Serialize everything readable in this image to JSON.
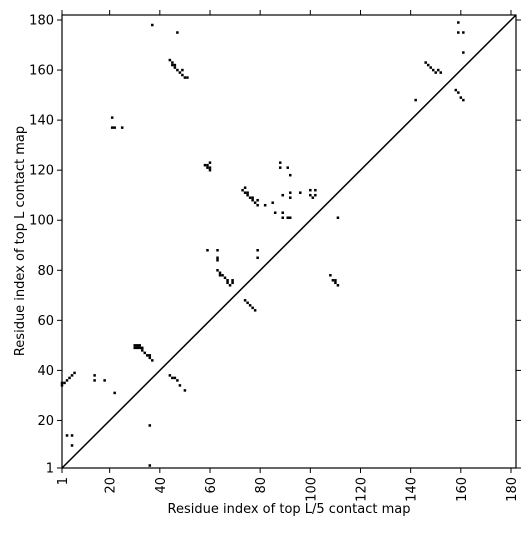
{
  "chart_data": {
    "type": "scatter",
    "marker": "square",
    "title": "",
    "xlabel": "Residue index of top L/5 contact map",
    "ylabel": "Residue index of top L contact map",
    "xlim": [
      1,
      182
    ],
    "ylim": [
      1,
      182
    ],
    "xticks": [
      1,
      20,
      40,
      60,
      80,
      100,
      120,
      140,
      160,
      180
    ],
    "yticks": [
      1,
      20,
      40,
      60,
      80,
      100,
      120,
      140,
      160,
      180
    ],
    "diagonal": true,
    "grid": false,
    "point_color": "#000000",
    "series": [
      {
        "points": [
          [
            1,
            34
          ],
          [
            1,
            35
          ],
          [
            2,
            35
          ],
          [
            3,
            36
          ],
          [
            4,
            37
          ],
          [
            5,
            38
          ],
          [
            6,
            39
          ],
          [
            3,
            14
          ],
          [
            5,
            14
          ],
          [
            5,
            10
          ],
          [
            14,
            36
          ],
          [
            14,
            38
          ],
          [
            18,
            36
          ],
          [
            22,
            31
          ],
          [
            36,
            2
          ],
          [
            36,
            18
          ],
          [
            30,
            49
          ],
          [
            30,
            50
          ],
          [
            31,
            49
          ],
          [
            31,
            50
          ],
          [
            32,
            49
          ],
          [
            32,
            50
          ],
          [
            33,
            48
          ],
          [
            33,
            49
          ],
          [
            34,
            47
          ],
          [
            35,
            46
          ],
          [
            36,
            45
          ],
          [
            36,
            46
          ],
          [
            37,
            44
          ],
          [
            44,
            38
          ],
          [
            45,
            37
          ],
          [
            46,
            37
          ],
          [
            47,
            36
          ],
          [
            48,
            34
          ],
          [
            50,
            32
          ],
          [
            21,
            137
          ],
          [
            21,
            141
          ],
          [
            22,
            137
          ],
          [
            25,
            137
          ],
          [
            37,
            178
          ],
          [
            47,
            175
          ],
          [
            44,
            164
          ],
          [
            45,
            162
          ],
          [
            45,
            163
          ],
          [
            46,
            161
          ],
          [
            46,
            162
          ],
          [
            47,
            160
          ],
          [
            48,
            159
          ],
          [
            49,
            158
          ],
          [
            49,
            160
          ],
          [
            50,
            157
          ],
          [
            51,
            157
          ],
          [
            58,
            122
          ],
          [
            59,
            121
          ],
          [
            59,
            122
          ],
          [
            60,
            120
          ],
          [
            60,
            121
          ],
          [
            60,
            123
          ],
          [
            59,
            88
          ],
          [
            63,
            88
          ],
          [
            63,
            84
          ],
          [
            63,
            85
          ],
          [
            63,
            80
          ],
          [
            64,
            78
          ],
          [
            64,
            79
          ],
          [
            65,
            78
          ],
          [
            66,
            77
          ],
          [
            67,
            75
          ],
          [
            67,
            76
          ],
          [
            68,
            74
          ],
          [
            69,
            75
          ],
          [
            69,
            76
          ],
          [
            74,
            68
          ],
          [
            75,
            67
          ],
          [
            76,
            66
          ],
          [
            77,
            65
          ],
          [
            78,
            64
          ],
          [
            73,
            112
          ],
          [
            74,
            111
          ],
          [
            74,
            113
          ],
          [
            75,
            110
          ],
          [
            75,
            111
          ],
          [
            76,
            109
          ],
          [
            77,
            108
          ],
          [
            77,
            109
          ],
          [
            78,
            107
          ],
          [
            79,
            106
          ],
          [
            79,
            108
          ],
          [
            79,
            85
          ],
          [
            79,
            88
          ],
          [
            82,
            106
          ],
          [
            85,
            107
          ],
          [
            86,
            103
          ],
          [
            89,
            103
          ],
          [
            89,
            101
          ],
          [
            91,
            101
          ],
          [
            92,
            101
          ],
          [
            88,
            121
          ],
          [
            88,
            123
          ],
          [
            91,
            121
          ],
          [
            92,
            118
          ],
          [
            92,
            109
          ],
          [
            92,
            111
          ],
          [
            89,
            110
          ],
          [
            96,
            111
          ],
          [
            100,
            110
          ],
          [
            100,
            112
          ],
          [
            101,
            109
          ],
          [
            102,
            110
          ],
          [
            102,
            112
          ],
          [
            108,
            78
          ],
          [
            109,
            76
          ],
          [
            110,
            75
          ],
          [
            110,
            76
          ],
          [
            111,
            74
          ],
          [
            111,
            101
          ],
          [
            146,
            163
          ],
          [
            147,
            162
          ],
          [
            148,
            161
          ],
          [
            149,
            160
          ],
          [
            150,
            159
          ],
          [
            151,
            160
          ],
          [
            152,
            159
          ],
          [
            142,
            148
          ],
          [
            158,
            152
          ],
          [
            159,
            151
          ],
          [
            160,
            149
          ],
          [
            161,
            148
          ],
          [
            161,
            167
          ],
          [
            159,
            175
          ],
          [
            159,
            179
          ],
          [
            161,
            175
          ]
        ]
      }
    ]
  }
}
